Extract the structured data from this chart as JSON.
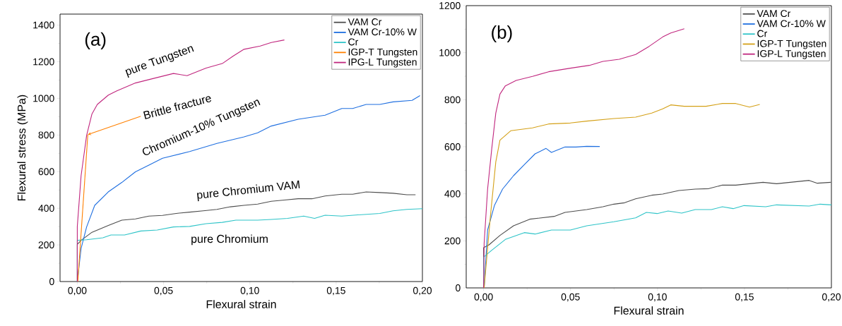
{
  "chart_data": [
    {
      "type": "line",
      "title": "(a)",
      "xlabel": "Flexural strain",
      "ylabel": "Flexural stress (MPa)",
      "xlim": [
        -0.01,
        0.2
      ],
      "ylim": [
        0,
        1460
      ],
      "xticks": [
        {
          "value": 0,
          "label": "0,00"
        },
        {
          "value": 0.05,
          "label": "0,05"
        },
        {
          "value": 0.1,
          "label": "0,10"
        },
        {
          "value": 0.15,
          "label": "0,15"
        },
        {
          "value": 0.2,
          "label": "0,20"
        }
      ],
      "yticks": [
        0,
        200,
        400,
        600,
        800,
        1000,
        1200,
        1400
      ],
      "legend": "top right",
      "series": [
        {
          "name": "VAM Cr",
          "color": "#4d4d4d",
          "x": [
            0,
            0,
            0.0022,
            0.0085,
            0.018,
            0.0258,
            0.0337,
            0.0415,
            0.0494,
            0.0573,
            0.0651,
            0.073,
            0.0809,
            0.0887,
            0.0966,
            0.1045,
            0.1124,
            0.12,
            0.128,
            0.136,
            0.1436,
            0.1533,
            0.1596,
            0.1674,
            0.1753,
            0.183,
            0.191,
            0.196
          ],
          "values": [
            0,
            203,
            225,
            269,
            306,
            335,
            342,
            357,
            361,
            372,
            379,
            386,
            394,
            408,
            416,
            423,
            438,
            445,
            452,
            452,
            467,
            477,
            477,
            489,
            486,
            482,
            474,
            474
          ]
        },
        {
          "name": "VAM Cr-10% W",
          "color": "#1f6fe0",
          "x": [
            0,
            0.0022,
            0.0054,
            0.0101,
            0.0179,
            0.0258,
            0.0337,
            0.0415,
            0.0494,
            0.0651,
            0.0809,
            0.0966,
            0.1045,
            0.1124,
            0.128,
            0.1436,
            0.1533,
            0.1596,
            0.1674,
            0.1753,
            0.183,
            0.194,
            0.1986
          ],
          "values": [
            0,
            181,
            298,
            416,
            489,
            541,
            599,
            636,
            673,
            710,
            754,
            790,
            812,
            849,
            886,
            908,
            945,
            945,
            967,
            967,
            981,
            989,
            1015
          ]
        },
        {
          "name": "Cr",
          "color": "#2ec4c8",
          "x": [
            0,
            0,
            0.0054,
            0.0148,
            0.0195,
            0.0274,
            0.0368,
            0.0463,
            0.0557,
            0.0651,
            0.0746,
            0.084,
            0.0919,
            0.1045,
            0.1124,
            0.1218,
            0.1312,
            0.1375,
            0.1436,
            0.1533,
            0.1627,
            0.1753,
            0.183,
            0.191,
            0.2
          ],
          "values": [
            0,
            225,
            228,
            239,
            254,
            254,
            276,
            281,
            298,
            301,
            316,
            323,
            335,
            335,
            339,
            345,
            357,
            345,
            362,
            357,
            364,
            372,
            386,
            394,
            398
          ]
        },
        {
          "name": "IGP-T Tungsten",
          "color": "#ff8000",
          "x": [
            0.0003,
            0.0061
          ],
          "values": [
            0,
            802
          ]
        },
        {
          "name": "IPG-L Tungsten",
          "color": "#c0267e",
          "x": [
            0,
            0,
            0.0022,
            0.0054,
            0.0085,
            0.0116,
            0.018,
            0.0227,
            0.0337,
            0.043,
            0.0557,
            0.0636,
            0.0746,
            0.084,
            0.0903,
            0.0966,
            0.106,
            0.1124,
            0.12
          ],
          "values": [
            0,
            300,
            578,
            798,
            915,
            967,
            1018,
            1040,
            1084,
            1106,
            1136,
            1124,
            1165,
            1190,
            1231,
            1268,
            1286,
            1305,
            1319
          ]
        }
      ],
      "annotations": [
        "pure Tungsten",
        {
          "text": "Brittle fracture",
          "x": 0.0061,
          "y": 802
        },
        "Chromium-10% Tungsten",
        "pure Chromium VAM",
        "pure Chromium"
      ]
    },
    {
      "type": "line",
      "title": "(b)",
      "xlabel": "Flexural strain",
      "xlim": [
        -0.01,
        0.2
      ],
      "ylim": [
        0,
        1200
      ],
      "xticks": [
        {
          "value": 0,
          "label": "0,00"
        },
        {
          "value": 0.05,
          "label": "0,05"
        },
        {
          "value": 0.1,
          "label": "0,10"
        },
        {
          "value": 0.15,
          "label": "0,15"
        },
        {
          "value": 0.2,
          "label": "0,20"
        }
      ],
      "yticks": [
        0,
        200,
        400,
        600,
        800,
        1000,
        1200
      ],
      "legend": "top right",
      "series": [
        {
          "name": "VAM Cr",
          "color": "#4d4d4d",
          "x": [
            0,
            0,
            0.0031,
            0.0094,
            0.0172,
            0.0265,
            0.0406,
            0.0468,
            0.0593,
            0.0686,
            0.0749,
            0.0811,
            0.0874,
            0.0967,
            0.103,
            0.1123,
            0.1217,
            0.1295,
            0.1373,
            0.145,
            0.1607,
            0.1685,
            0.1763,
            0.1872,
            0.1919,
            0.1997
          ],
          "values": [
            0,
            171,
            183,
            223,
            264,
            292,
            304,
            321,
            333,
            345,
            356,
            362,
            379,
            394,
            399,
            414,
            420,
            422,
            437,
            437,
            449,
            443,
            449,
            457,
            445,
            449
          ]
        },
        {
          "name": "VAM Cr-10% W",
          "color": "#1f6fe0",
          "x": [
            0.0003,
            0.0023,
            0.0062,
            0.0109,
            0.0172,
            0.0234,
            0.0296,
            0.0359,
            0.039,
            0.0468,
            0.053,
            0.0593,
            0.0668
          ],
          "values": [
            0,
            246,
            350,
            420,
            477,
            524,
            570,
            593,
            576,
            599,
            599,
            602,
            601
          ]
        },
        {
          "name": "Cr",
          "color": "#2ec4c8",
          "x": [
            0,
            0,
            0.0047,
            0.0125,
            0.0234,
            0.0296,
            0.039,
            0.0499,
            0.0593,
            0.0749,
            0.0874,
            0.0936,
            0.0998,
            0.1061,
            0.1139,
            0.1217,
            0.131,
            0.1373,
            0.1435,
            0.1498,
            0.1622,
            0.1685,
            0.1872,
            0.1935,
            0.2
          ],
          "values": [
            0,
            131,
            160,
            206,
            235,
            229,
            246,
            246,
            264,
            281,
            298,
            321,
            316,
            327,
            318,
            333,
            333,
            345,
            337,
            350,
            345,
            353,
            348,
            356,
            353
          ]
        },
        {
          "name": "IGP-T Tungsten",
          "color": "#d4a017",
          "x": [
            0.0003,
            0.0039,
            0.007,
            0.0094,
            0.0156,
            0.0281,
            0.0374,
            0.0499,
            0.0593,
            0.0749,
            0.0874,
            0.0967,
            0.103,
            0.1076,
            0.1154,
            0.1279,
            0.1373,
            0.145,
            0.1529,
            0.1588
          ],
          "values": [
            0,
            304,
            535,
            628,
            668,
            680,
            697,
            701,
            709,
            720,
            726,
            743,
            761,
            778,
            772,
            772,
            784,
            784,
            769,
            780
          ]
        },
        {
          "name": "IGP-L Tungsten",
          "color": "#c0267e",
          "x": [
            0,
            0.0003,
            0.0023,
            0.0047,
            0.007,
            0.0094,
            0.0125,
            0.0187,
            0.0281,
            0.0374,
            0.0499,
            0.0608,
            0.0686,
            0.078,
            0.0874,
            0.0952,
            0.103,
            0.1076,
            0.1154
          ],
          "values": [
            0,
            188,
            420,
            593,
            743,
            824,
            859,
            882,
            899,
            919,
            934,
            946,
            963,
            972,
            992,
            1027,
            1067,
            1084,
            1102
          ]
        }
      ]
    }
  ]
}
